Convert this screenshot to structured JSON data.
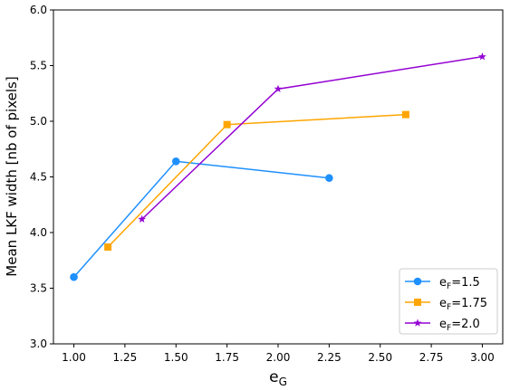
{
  "chart_data": {
    "type": "line",
    "xlabel": "e",
    "xlabel_sub": "G",
    "ylabel": "Mean LKF width [nb of pixels]",
    "xlim": [
      0.9,
      3.1
    ],
    "ylim": [
      3.0,
      6.0
    ],
    "x_ticks": [
      1.0,
      1.25,
      1.5,
      1.75,
      2.0,
      2.25,
      2.5,
      2.75,
      3.0
    ],
    "x_tick_labels": [
      "1.00",
      "1.25",
      "1.50",
      "1.75",
      "2.00",
      "2.25",
      "2.50",
      "2.75",
      "3.00"
    ],
    "y_ticks": [
      3.0,
      3.5,
      4.0,
      4.5,
      5.0,
      5.5,
      6.0
    ],
    "y_tick_labels": [
      "3.0",
      "3.5",
      "4.0",
      "4.5",
      "5.0",
      "5.5",
      "6.0"
    ],
    "grid": false,
    "legend_position": "lower-right",
    "series": [
      {
        "name_base": "e",
        "name_sub": "F",
        "name_value": "=1.5",
        "color": "#1e90ff",
        "marker": "circle",
        "x": [
          1.0,
          1.5,
          2.25
        ],
        "y": [
          3.6,
          4.64,
          4.49
        ]
      },
      {
        "name_base": "e",
        "name_sub": "F",
        "name_value": "=1.75",
        "color": "#ffa500",
        "marker": "square",
        "x": [
          1.1667,
          1.75,
          2.625
        ],
        "y": [
          3.87,
          4.97,
          5.06
        ]
      },
      {
        "name_base": "e",
        "name_sub": "F",
        "name_value": "=2.0",
        "color": "#9400d3",
        "marker": "star",
        "x": [
          1.3333,
          2.0,
          3.0
        ],
        "y": [
          4.12,
          5.29,
          5.58
        ]
      }
    ]
  }
}
